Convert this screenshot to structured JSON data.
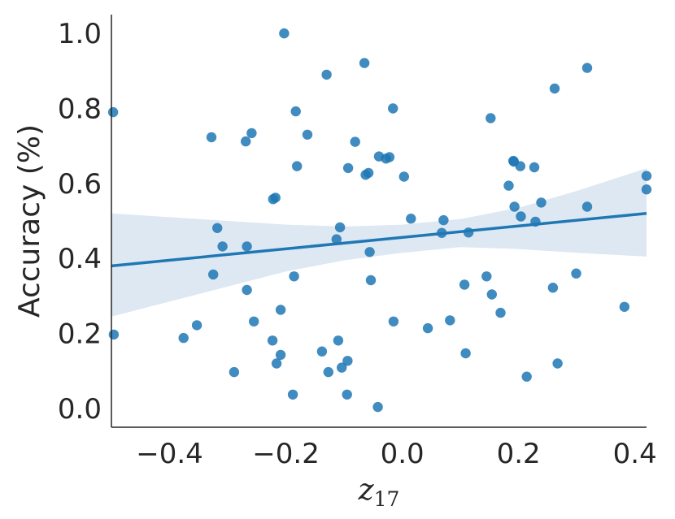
{
  "chart_data": {
    "type": "scatter",
    "xlabel": "z",
    "xlabel_subscript": "17",
    "ylabel": "Accuracy (%)",
    "xlim": [
      -0.5,
      0.42
    ],
    "ylim": [
      -0.05,
      1.05
    ],
    "x_ticks": [
      -0.4,
      -0.2,
      0.0,
      0.2,
      0.4
    ],
    "x_tick_labels": [
      "−0.4",
      "−0.2",
      "0.0",
      "0.2",
      "0.4"
    ],
    "y_ticks": [
      0.0,
      0.2,
      0.4,
      0.6,
      0.8,
      1.0
    ],
    "y_tick_labels": [
      "0.0",
      "0.2",
      "0.4",
      "0.6",
      "0.8",
      "1.0"
    ],
    "grid": false,
    "colors": {
      "point": "#1f77b4",
      "line": "#1f77b4",
      "band": "#dde8f3",
      "axis": "#262626"
    },
    "points": [
      {
        "x": -0.497,
        "y": 0.79
      },
      {
        "x": -0.496,
        "y": 0.197
      },
      {
        "x": -0.376,
        "y": 0.188
      },
      {
        "x": -0.353,
        "y": 0.222
      },
      {
        "x": -0.328,
        "y": 0.723
      },
      {
        "x": -0.325,
        "y": 0.357
      },
      {
        "x": -0.318,
        "y": 0.481
      },
      {
        "x": -0.309,
        "y": 0.432
      },
      {
        "x": -0.289,
        "y": 0.097
      },
      {
        "x": -0.269,
        "y": 0.712
      },
      {
        "x": -0.267,
        "y": 0.432
      },
      {
        "x": -0.267,
        "y": 0.316
      },
      {
        "x": -0.259,
        "y": 0.734
      },
      {
        "x": -0.255,
        "y": 0.232
      },
      {
        "x": -0.223,
        "y": 0.181
      },
      {
        "x": -0.222,
        "y": 0.558
      },
      {
        "x": -0.218,
        "y": 0.562
      },
      {
        "x": -0.216,
        "y": 0.12
      },
      {
        "x": -0.209,
        "y": 0.263
      },
      {
        "x": -0.209,
        "y": 0.143
      },
      {
        "x": -0.203,
        "y": 1.0
      },
      {
        "x": -0.188,
        "y": 0.037
      },
      {
        "x": -0.186,
        "y": 0.352
      },
      {
        "x": -0.183,
        "y": 0.792
      },
      {
        "x": -0.181,
        "y": 0.646
      },
      {
        "x": -0.163,
        "y": 0.73
      },
      {
        "x": -0.138,
        "y": 0.152
      },
      {
        "x": -0.13,
        "y": 0.89
      },
      {
        "x": -0.127,
        "y": 0.097
      },
      {
        "x": -0.113,
        "y": 0.451
      },
      {
        "x": -0.11,
        "y": 0.181
      },
      {
        "x": -0.107,
        "y": 0.483
      },
      {
        "x": -0.104,
        "y": 0.109
      },
      {
        "x": -0.095,
        "y": 0.037
      },
      {
        "x": -0.094,
        "y": 0.127
      },
      {
        "x": -0.093,
        "y": 0.641
      },
      {
        "x": -0.081,
        "y": 0.711
      },
      {
        "x": -0.065,
        "y": 0.921
      },
      {
        "x": -0.063,
        "y": 0.623
      },
      {
        "x": -0.058,
        "y": 0.628
      },
      {
        "x": -0.056,
        "y": 0.417
      },
      {
        "x": -0.054,
        "y": 0.342
      },
      {
        "x": -0.042,
        "y": 0.004
      },
      {
        "x": -0.04,
        "y": 0.672
      },
      {
        "x": -0.028,
        "y": 0.666
      },
      {
        "x": -0.022,
        "y": 0.67
      },
      {
        "x": -0.016,
        "y": 0.8
      },
      {
        "x": -0.015,
        "y": 0.232
      },
      {
        "x": 0.003,
        "y": 0.618
      },
      {
        "x": 0.015,
        "y": 0.506
      },
      {
        "x": 0.044,
        "y": 0.214
      },
      {
        "x": 0.068,
        "y": 0.468
      },
      {
        "x": 0.071,
        "y": 0.502
      },
      {
        "x": 0.082,
        "y": 0.235
      },
      {
        "x": 0.107,
        "y": 0.33
      },
      {
        "x": 0.109,
        "y": 0.147
      },
      {
        "x": 0.114,
        "y": 0.469
      },
      {
        "x": 0.145,
        "y": 0.352
      },
      {
        "x": 0.152,
        "y": 0.774
      },
      {
        "x": 0.154,
        "y": 0.304
      },
      {
        "x": 0.169,
        "y": 0.255
      },
      {
        "x": 0.183,
        "y": 0.594
      },
      {
        "x": 0.191,
        "y": 0.66
      },
      {
        "x": 0.192,
        "y": 0.658
      },
      {
        "x": 0.193,
        "y": 0.538
      },
      {
        "x": 0.203,
        "y": 0.646
      },
      {
        "x": 0.204,
        "y": 0.512
      },
      {
        "x": 0.214,
        "y": 0.085
      },
      {
        "x": 0.227,
        "y": 0.643
      },
      {
        "x": 0.229,
        "y": 0.498
      },
      {
        "x": 0.239,
        "y": 0.549
      },
      {
        "x": 0.259,
        "y": 0.322
      },
      {
        "x": 0.262,
        "y": 0.853
      },
      {
        "x": 0.267,
        "y": 0.12
      },
      {
        "x": 0.299,
        "y": 0.36
      },
      {
        "x": 0.318,
        "y": 0.908
      },
      {
        "x": 0.318,
        "y": 0.538
      },
      {
        "x": 0.382,
        "y": 0.271
      },
      {
        "x": 0.42,
        "y": 0.62
      },
      {
        "x": 0.42,
        "y": 0.584
      }
    ],
    "regression": {
      "x": [
        -0.5,
        0.42
      ],
      "y": [
        0.38,
        0.52
      ]
    },
    "confidence_band": {
      "x": [
        -0.5,
        -0.4,
        -0.3,
        -0.2,
        -0.1,
        0.0,
        0.1,
        0.2,
        0.3,
        0.42
      ],
      "upper": [
        0.52,
        0.51,
        0.5,
        0.49,
        0.485,
        0.49,
        0.505,
        0.535,
        0.58,
        0.64
      ],
      "lower": [
        0.245,
        0.285,
        0.325,
        0.365,
        0.395,
        0.415,
        0.43,
        0.425,
        0.415,
        0.405
      ]
    }
  }
}
